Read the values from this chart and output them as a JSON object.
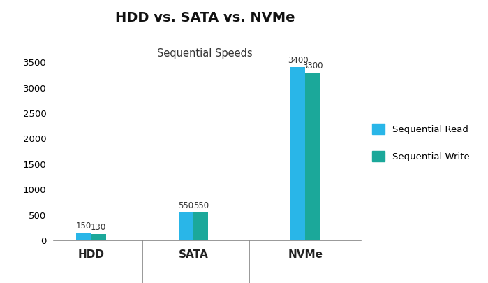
{
  "title": "HDD vs. SATA vs. NVMe",
  "subtitle": "Sequential Speeds",
  "categories": [
    "HDD",
    "SATA",
    "NVMe"
  ],
  "read_values": [
    150,
    550,
    3400
  ],
  "write_values": [
    130,
    550,
    3300
  ],
  "read_color": "#29B6E8",
  "write_color": "#1BA89A",
  "ylim": [
    0,
    3500
  ],
  "yticks": [
    0,
    500,
    1000,
    1500,
    2000,
    2500,
    3000,
    3500
  ],
  "legend_read": "Sequential Read",
  "legend_write": "Sequential Write",
  "bar_width": 0.32,
  "label_fontsize": 8.5,
  "title_fontsize": 14,
  "subtitle_fontsize": 10.5,
  "tick_fontsize": 9.5,
  "legend_fontsize": 9.5,
  "background_color": "#FFFFFF",
  "divider_color": "#888888",
  "x_positions": [
    1.0,
    3.2,
    5.6
  ]
}
